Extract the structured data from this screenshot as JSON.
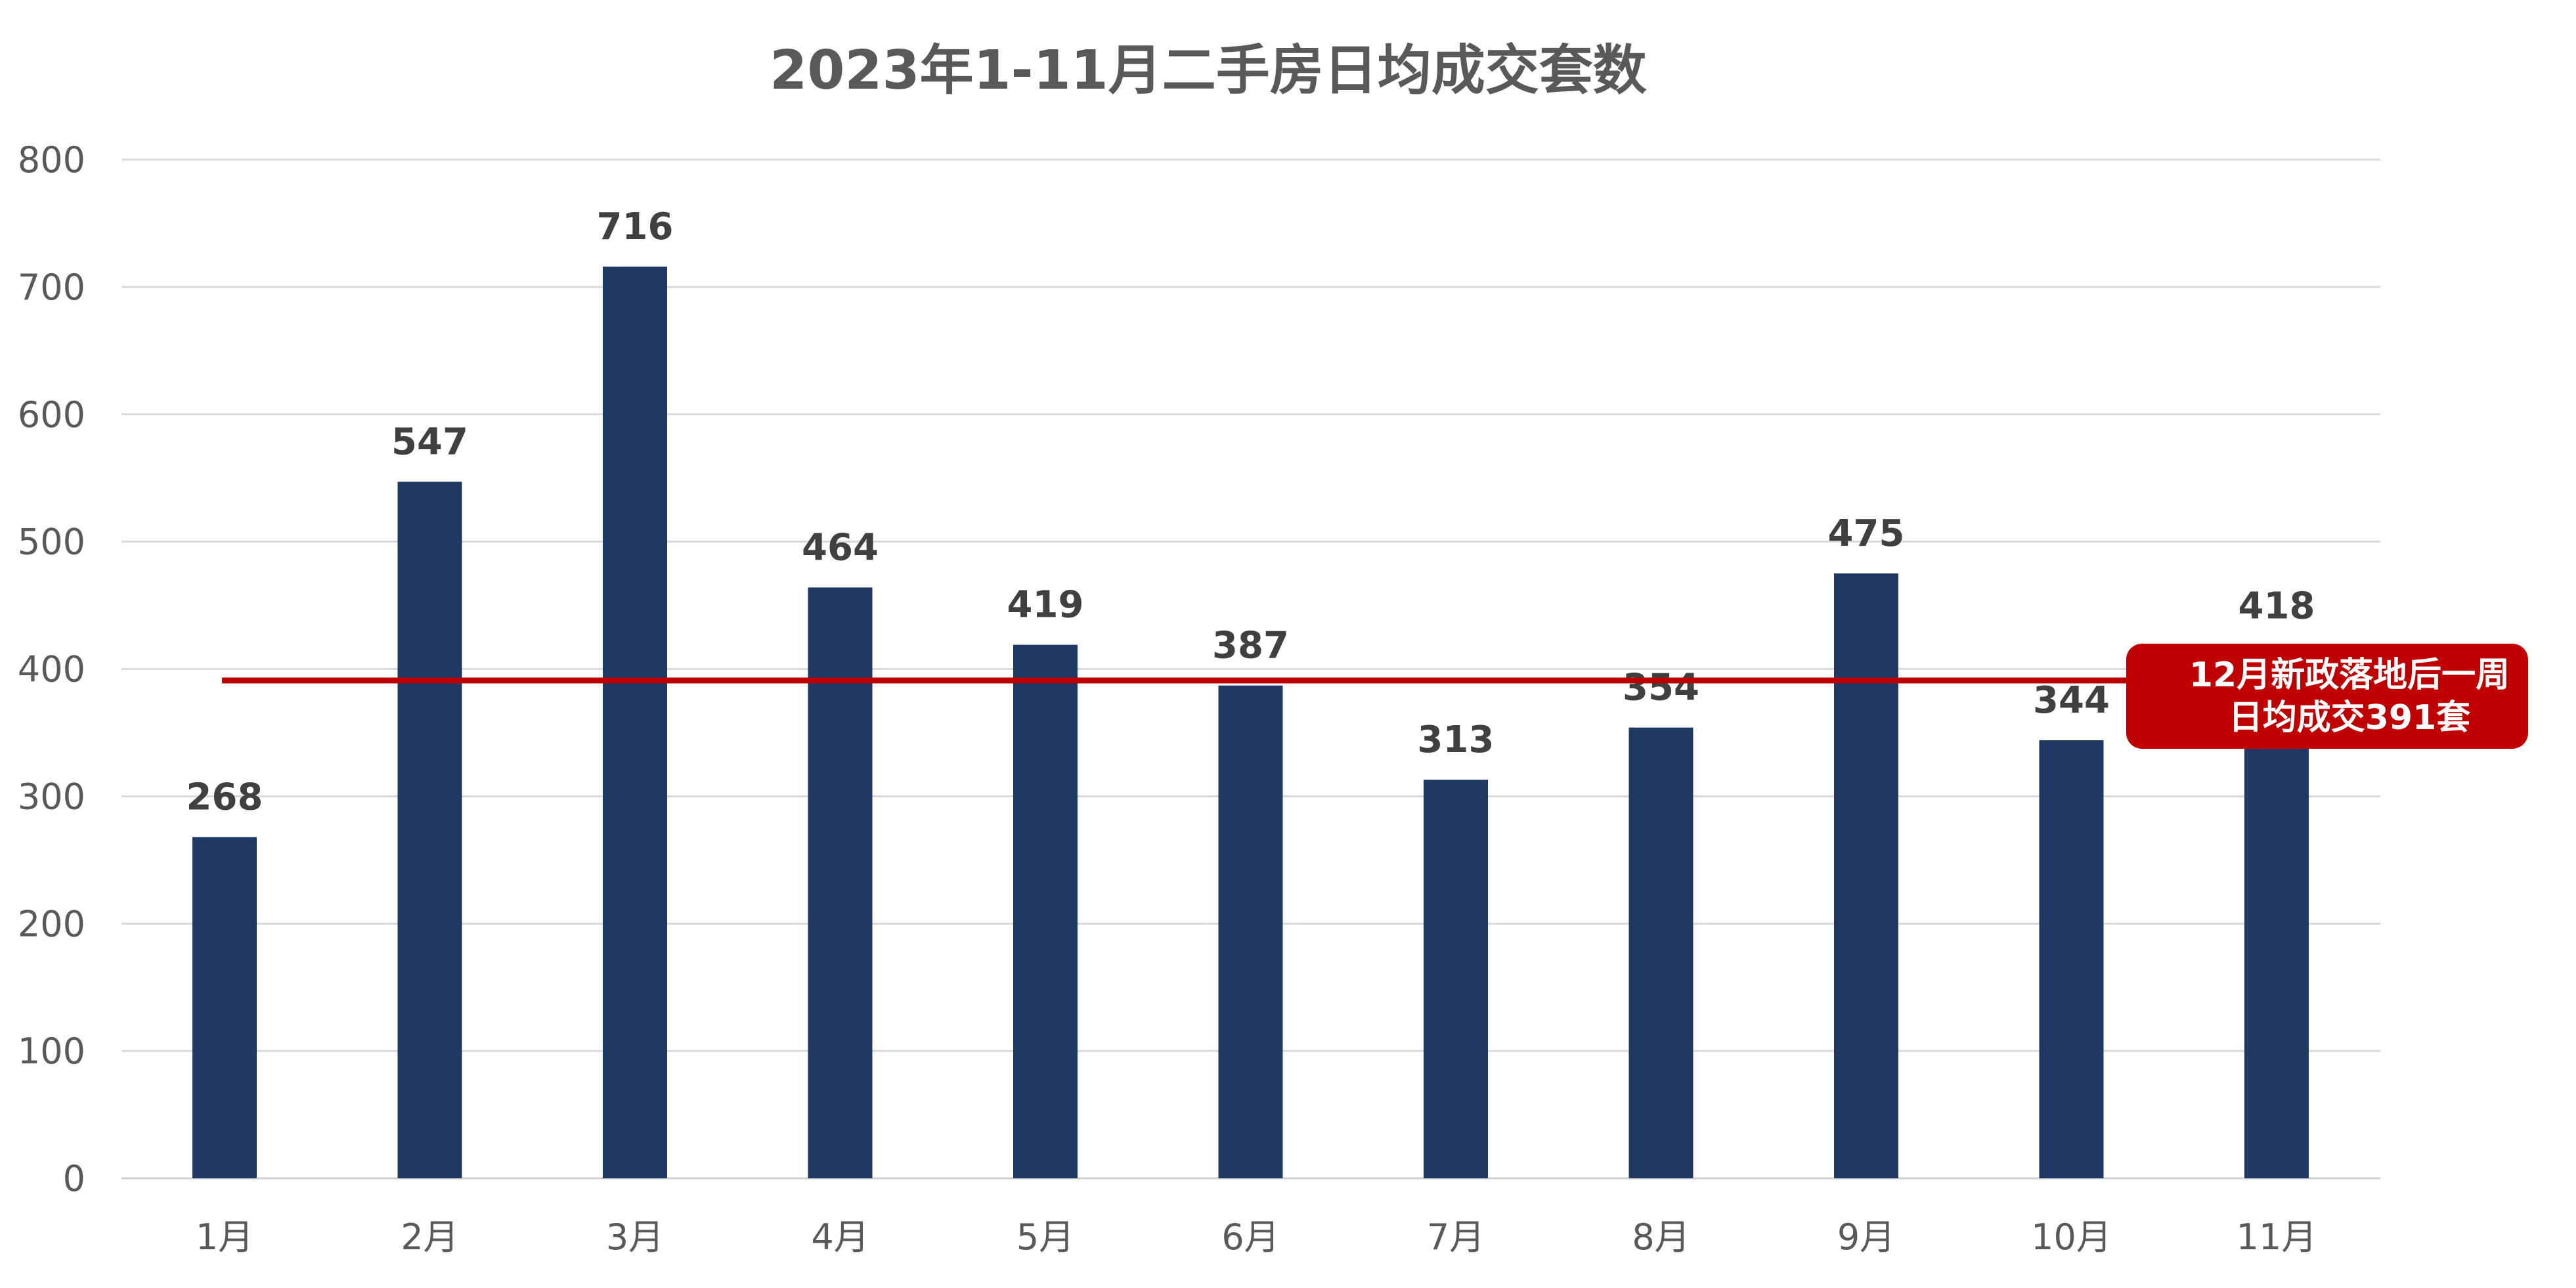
{
  "chart_data": {
    "type": "bar",
    "title": "2023年1-11月二手房日均成交套数",
    "xlabel": "",
    "ylabel": "",
    "categories": [
      "1月",
      "2月",
      "3月",
      "4月",
      "5月",
      "6月",
      "7月",
      "8月",
      "9月",
      "10月",
      "11月"
    ],
    "values": [
      268,
      547,
      716,
      464,
      419,
      387,
      313,
      354,
      475,
      344,
      418
    ],
    "ylim": [
      0,
      800
    ],
    "yticks": [
      "0",
      "100",
      "200",
      "300",
      "400",
      "500",
      "600",
      "700",
      "800"
    ],
    "grid": true,
    "data_labels": true,
    "reference_line": {
      "value": 391,
      "annotation": [
        "12月新政落地后一周",
        "日均成交391套"
      ]
    },
    "colors": {
      "bar": "#1F3864",
      "reference_line": "#C00000",
      "annotation_bg": "#C00000",
      "grid": "#D9D9D9",
      "axis": "#D0D0D0"
    }
  }
}
